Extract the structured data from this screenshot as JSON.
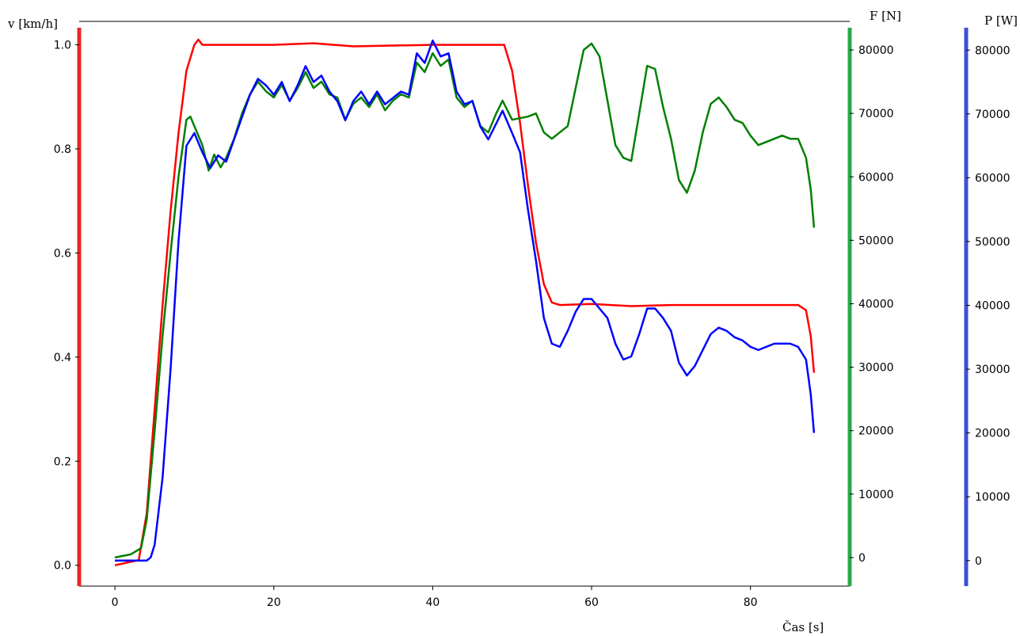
{
  "chart_data": {
    "type": "line",
    "xlabel": "Čas [s]",
    "xlim": [
      -4.5,
      92.5
    ],
    "x_ticks": [
      0,
      20,
      40,
      60,
      80
    ],
    "y_axes": [
      {
        "label": "v [km/h]",
        "range": [
          -0.04,
          1.045
        ],
        "ticks": [
          0.0,
          0.2,
          0.4,
          0.6,
          0.8,
          1.0
        ],
        "decimals": 1,
        "color": "#e8262a",
        "position": "left"
      },
      {
        "label": "F [N]",
        "range": [
          -4500,
          84500
        ],
        "ticks": [
          0,
          10000,
          20000,
          30000,
          40000,
          50000,
          60000,
          70000,
          80000
        ],
        "decimals": 0,
        "color": "#2aa84a",
        "position": "right"
      },
      {
        "label": "P [W]",
        "range": [
          -4000,
          84500
        ],
        "ticks": [
          0,
          10000,
          20000,
          30000,
          40000,
          50000,
          60000,
          70000,
          80000
        ],
        "decimals": 0,
        "color": "#3f4fd8",
        "position": "right-offset"
      }
    ],
    "grid": false,
    "series": [
      {
        "axis": 0,
        "color": "#ff0000",
        "points": [
          [
            0,
            0.0
          ],
          [
            3,
            0.01
          ],
          [
            4,
            0.1
          ],
          [
            5,
            0.3
          ],
          [
            6,
            0.5
          ],
          [
            7,
            0.68
          ],
          [
            8,
            0.83
          ],
          [
            9,
            0.95
          ],
          [
            10,
            1.0
          ],
          [
            10.5,
            1.01
          ],
          [
            11,
            1.0
          ],
          [
            20,
            1.0
          ],
          [
            25,
            1.003
          ],
          [
            30,
            0.997
          ],
          [
            40,
            1.0
          ],
          [
            49,
            1.0
          ],
          [
            50,
            0.95
          ],
          [
            51,
            0.85
          ],
          [
            52,
            0.73
          ],
          [
            53,
            0.62
          ],
          [
            54,
            0.54
          ],
          [
            55,
            0.505
          ],
          [
            56,
            0.5
          ],
          [
            60,
            0.502
          ],
          [
            65,
            0.498
          ],
          [
            70,
            0.5
          ],
          [
            80,
            0.5
          ],
          [
            86,
            0.5
          ],
          [
            87,
            0.49
          ],
          [
            87.6,
            0.44
          ],
          [
            88,
            0.37
          ]
        ]
      },
      {
        "axis": 1,
        "color": "#008000",
        "points": [
          [
            0,
            0
          ],
          [
            2,
            500
          ],
          [
            3.3,
            1500
          ],
          [
            4,
            6000
          ],
          [
            5,
            20000
          ],
          [
            6,
            35000
          ],
          [
            7,
            48000
          ],
          [
            8,
            60000
          ],
          [
            9,
            69000
          ],
          [
            9.5,
            69500
          ],
          [
            10,
            68000
          ],
          [
            11,
            65000
          ],
          [
            11.8,
            61000
          ],
          [
            12.5,
            63500
          ],
          [
            13.3,
            61500
          ],
          [
            14,
            63000
          ],
          [
            15,
            66000
          ],
          [
            16,
            70000
          ],
          [
            17,
            73000
          ],
          [
            18,
            75000
          ],
          [
            19,
            73500
          ],
          [
            20,
            72500
          ],
          [
            21,
            74500
          ],
          [
            22,
            72000
          ],
          [
            23,
            74000
          ],
          [
            24,
            76500
          ],
          [
            25,
            74000
          ],
          [
            26,
            75000
          ],
          [
            27,
            73000
          ],
          [
            28,
            72500
          ],
          [
            29,
            69000
          ],
          [
            30,
            71500
          ],
          [
            31,
            72500
          ],
          [
            32,
            71000
          ],
          [
            33,
            73000
          ],
          [
            34,
            70500
          ],
          [
            35,
            72000
          ],
          [
            36,
            73000
          ],
          [
            37,
            72500
          ],
          [
            38,
            78000
          ],
          [
            39,
            76500
          ],
          [
            40,
            79500
          ],
          [
            41,
            77500
          ],
          [
            42,
            78500
          ],
          [
            43,
            72500
          ],
          [
            44,
            71000
          ],
          [
            45,
            72000
          ],
          [
            46,
            68000
          ],
          [
            47,
            67000
          ],
          [
            48,
            70000
          ],
          [
            48.8,
            72000
          ],
          [
            50,
            69000
          ],
          [
            52,
            69500
          ],
          [
            53,
            70000
          ],
          [
            54,
            67000
          ],
          [
            55,
            66000
          ],
          [
            57,
            68000
          ],
          [
            58,
            74000
          ],
          [
            59,
            80000
          ],
          [
            60,
            81000
          ],
          [
            61,
            79000
          ],
          [
            62,
            72000
          ],
          [
            63,
            65000
          ],
          [
            64,
            63000
          ],
          [
            65,
            62500
          ],
          [
            66,
            70000
          ],
          [
            67,
            77500
          ],
          [
            68,
            77000
          ],
          [
            69,
            71000
          ],
          [
            70,
            66000
          ],
          [
            71,
            59500
          ],
          [
            72,
            57500
          ],
          [
            73,
            61000
          ],
          [
            74,
            67000
          ],
          [
            75,
            71500
          ],
          [
            76,
            72500
          ],
          [
            77,
            71000
          ],
          [
            78,
            69000
          ],
          [
            79,
            68500
          ],
          [
            80,
            66500
          ],
          [
            81,
            65000
          ],
          [
            82,
            65500
          ],
          [
            83,
            66000
          ],
          [
            84,
            66500
          ],
          [
            85,
            66000
          ],
          [
            86,
            66000
          ],
          [
            87,
            63000
          ],
          [
            87.6,
            58000
          ],
          [
            88,
            52000
          ]
        ]
      },
      {
        "axis": 2,
        "color": "#0000ff",
        "points": [
          [
            0,
            0
          ],
          [
            4,
            0
          ],
          [
            4.5,
            500
          ],
          [
            5,
            2500
          ],
          [
            6,
            13000
          ],
          [
            7,
            30000
          ],
          [
            8,
            50000
          ],
          [
            9,
            65000
          ],
          [
            10,
            67000
          ],
          [
            11,
            64000
          ],
          [
            12,
            61500
          ],
          [
            13,
            63500
          ],
          [
            14,
            62500
          ],
          [
            15,
            66000
          ],
          [
            16,
            69500
          ],
          [
            17,
            73000
          ],
          [
            18,
            75500
          ],
          [
            19,
            74500
          ],
          [
            20,
            73000
          ],
          [
            21,
            75000
          ],
          [
            22,
            72000
          ],
          [
            23,
            74500
          ],
          [
            24,
            77500
          ],
          [
            25,
            75000
          ],
          [
            26,
            76000
          ],
          [
            27,
            73500
          ],
          [
            28,
            72000
          ],
          [
            29,
            69000
          ],
          [
            30,
            72000
          ],
          [
            31,
            73500
          ],
          [
            32,
            71500
          ],
          [
            33,
            73500
          ],
          [
            34,
            71500
          ],
          [
            35,
            72500
          ],
          [
            36,
            73500
          ],
          [
            37,
            73000
          ],
          [
            38,
            79500
          ],
          [
            39,
            78000
          ],
          [
            40,
            81500
          ],
          [
            41,
            79000
          ],
          [
            42,
            79500
          ],
          [
            43,
            73500
          ],
          [
            44,
            71500
          ],
          [
            45,
            72000
          ],
          [
            46,
            68000
          ],
          [
            47,
            66000
          ],
          [
            48,
            68500
          ],
          [
            48.8,
            70500
          ],
          [
            50,
            67000
          ],
          [
            51,
            64000
          ],
          [
            52,
            55000
          ],
          [
            53,
            47000
          ],
          [
            54,
            38000
          ],
          [
            55,
            34000
          ],
          [
            56,
            33500
          ],
          [
            57,
            36000
          ],
          [
            58,
            39000
          ],
          [
            59,
            41000
          ],
          [
            60,
            41000
          ],
          [
            61,
            39500
          ],
          [
            62,
            38000
          ],
          [
            63,
            34000
          ],
          [
            64,
            31500
          ],
          [
            65,
            32000
          ],
          [
            66,
            35500
          ],
          [
            67,
            39500
          ],
          [
            68,
            39500
          ],
          [
            69,
            38000
          ],
          [
            70,
            36000
          ],
          [
            71,
            31000
          ],
          [
            72,
            29000
          ],
          [
            73,
            30500
          ],
          [
            74,
            33000
          ],
          [
            75,
            35500
          ],
          [
            76,
            36500
          ],
          [
            77,
            36000
          ],
          [
            78,
            35000
          ],
          [
            79,
            34500
          ],
          [
            80,
            33500
          ],
          [
            81,
            33000
          ],
          [
            82,
            33500
          ],
          [
            83,
            34000
          ],
          [
            84,
            34000
          ],
          [
            85,
            34000
          ],
          [
            86,
            33500
          ],
          [
            87,
            31500
          ],
          [
            87.6,
            26000
          ],
          [
            88,
            20000
          ]
        ]
      }
    ]
  }
}
